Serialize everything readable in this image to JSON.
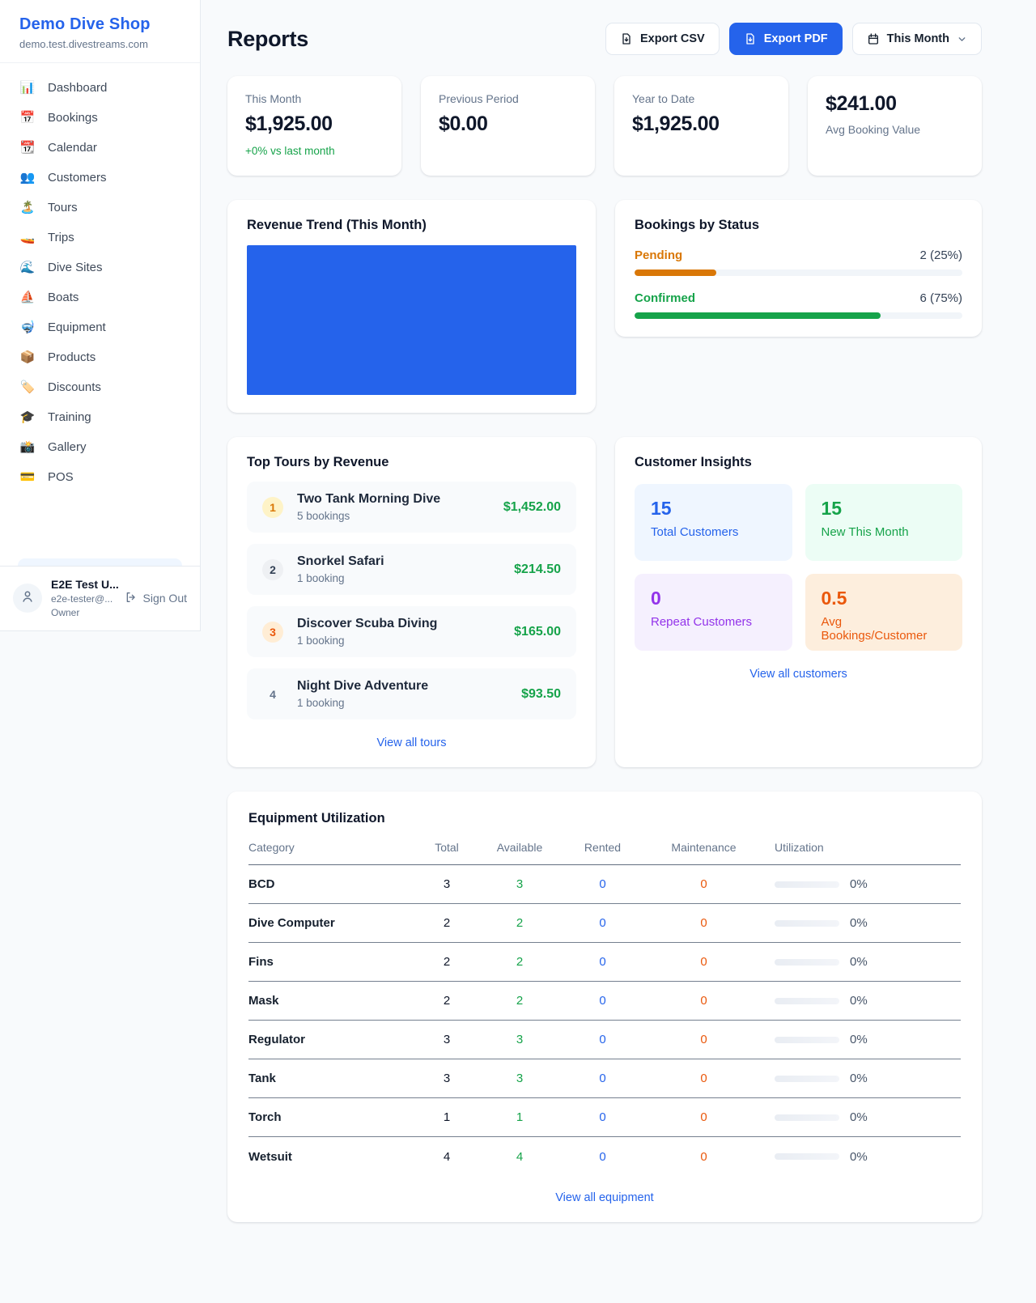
{
  "sidebar": {
    "brand": {
      "name": "Demo Dive Shop",
      "domain": "demo.test.divestreams.com"
    },
    "nav": [
      {
        "icon": "📊",
        "label": "Dashboard"
      },
      {
        "icon": "📅",
        "label": "Bookings"
      },
      {
        "icon": "📆",
        "label": "Calendar"
      },
      {
        "icon": "👥",
        "label": "Customers"
      },
      {
        "icon": "🏝️",
        "label": "Tours"
      },
      {
        "icon": "🚤",
        "label": "Trips"
      },
      {
        "icon": "🌊",
        "label": "Dive Sites"
      },
      {
        "icon": "⛵",
        "label": "Boats"
      },
      {
        "icon": "🤿",
        "label": "Equipment"
      },
      {
        "icon": "📦",
        "label": "Products"
      },
      {
        "icon": "🏷️",
        "label": "Discounts"
      },
      {
        "icon": "🎓",
        "label": "Training"
      },
      {
        "icon": "📸",
        "label": "Gallery"
      },
      {
        "icon": "💳",
        "label": "POS"
      }
    ],
    "user": {
      "name": "E2E Test U...",
      "email": "e2e-tester@...",
      "role": "Owner",
      "signout_label": "Sign Out"
    }
  },
  "header": {
    "title": "Reports",
    "export_csv_label": "Export CSV",
    "export_pdf_label": "Export PDF",
    "period_label": "This Month"
  },
  "stats": [
    {
      "label": "This Month",
      "value": "$1,925.00",
      "delta": "+0% vs last month"
    },
    {
      "label": "Previous Period",
      "value": "$0.00"
    },
    {
      "label": "Year to Date",
      "value": "$1,925.00"
    },
    {
      "label": "Avg Booking Value",
      "value": "$241.00"
    }
  ],
  "revenue_trend": {
    "title": "Revenue Trend (This Month)",
    "bar_color": "#2563eb"
  },
  "bookings_by_status": {
    "title": "Bookings by Status",
    "rows": [
      {
        "label": "Pending",
        "value": "2 (25%)",
        "pct": 25,
        "color": "#d97706"
      },
      {
        "label": "Confirmed",
        "value": "6 (75%)",
        "pct": 75,
        "color": "#16a34a"
      }
    ]
  },
  "top_tours": {
    "title": "Top Tours by Revenue",
    "items": [
      {
        "rank": "1",
        "name": "Two Tank Morning Dive",
        "bookings": "5 bookings",
        "revenue": "$1,452.00",
        "badge_bg": "#fef3c7",
        "badge_fg": "#d97706"
      },
      {
        "rank": "2",
        "name": "Snorkel Safari",
        "bookings": "1 booking",
        "revenue": "$214.50",
        "badge_bg": "#eef0f3",
        "badge_fg": "#334155"
      },
      {
        "rank": "3",
        "name": "Discover Scuba Diving",
        "bookings": "1 booking",
        "revenue": "$165.00",
        "badge_bg": "#ffedd5",
        "badge_fg": "#ea580c"
      },
      {
        "rank": "4",
        "name": "Night Dive Adventure",
        "bookings": "1 booking",
        "revenue": "$93.50",
        "badge_bg": "transparent",
        "badge_fg": "#64748b"
      }
    ],
    "link": "View all tours"
  },
  "customer_insights": {
    "title": "Customer Insights",
    "tiles": [
      {
        "value": "15",
        "label": "Total Customers",
        "fg": "#2563eb",
        "bg": "#eff6ff"
      },
      {
        "value": "15",
        "label": "New This Month",
        "fg": "#16a34a",
        "bg": "#ecfdf5"
      },
      {
        "value": "0",
        "label": "Repeat Customers",
        "fg": "#9333ea",
        "bg": "#f5f0fe"
      },
      {
        "value": "0.5",
        "label": "Avg Bookings/Customer",
        "fg": "#ea580c",
        "bg": "#fdeedd"
      }
    ],
    "link": "View all customers"
  },
  "equipment": {
    "title": "Equipment Utilization",
    "columns": {
      "category": "Category",
      "total": "Total",
      "available": "Available",
      "rented": "Rented",
      "maintenance": "Maintenance",
      "utilization": "Utilization"
    },
    "rows": [
      {
        "category": "BCD",
        "total": "3",
        "available": "3",
        "rented": "0",
        "maintenance": "0",
        "utilization": "0%"
      },
      {
        "category": "Dive Computer",
        "total": "2",
        "available": "2",
        "rented": "0",
        "maintenance": "0",
        "utilization": "0%"
      },
      {
        "category": "Fins",
        "total": "2",
        "available": "2",
        "rented": "0",
        "maintenance": "0",
        "utilization": "0%"
      },
      {
        "category": "Mask",
        "total": "2",
        "available": "2",
        "rented": "0",
        "maintenance": "0",
        "utilization": "0%"
      },
      {
        "category": "Regulator",
        "total": "3",
        "available": "3",
        "rented": "0",
        "maintenance": "0",
        "utilization": "0%"
      },
      {
        "category": "Tank",
        "total": "3",
        "available": "3",
        "rented": "0",
        "maintenance": "0",
        "utilization": "0%"
      },
      {
        "category": "Torch",
        "total": "1",
        "available": "1",
        "rented": "0",
        "maintenance": "0",
        "utilization": "0%"
      },
      {
        "category": "Wetsuit",
        "total": "4",
        "available": "4",
        "rented": "0",
        "maintenance": "0",
        "utilization": "0%"
      }
    ],
    "link": "View all equipment"
  }
}
